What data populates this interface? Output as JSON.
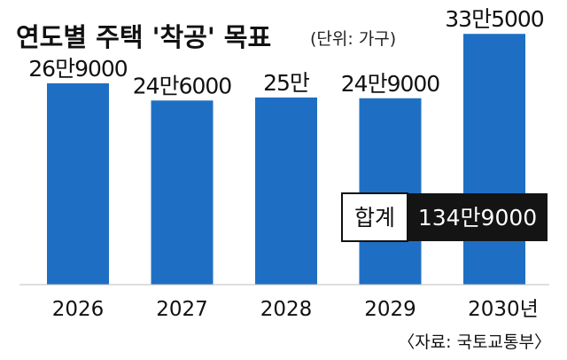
{
  "header": {
    "title": "연도별 주택 '착공' 목표",
    "unit": "(단위: 가구)"
  },
  "chart_data": {
    "type": "bar",
    "categories": [
      "2026",
      "2027",
      "2028",
      "2029",
      "2030년"
    ],
    "values": [
      269000,
      246000,
      250000,
      249000,
      335000
    ],
    "data_labels": [
      "26만9000",
      "24만6000",
      "25만",
      "24만9000",
      "33만5000"
    ],
    "title": "연도별 주택 '착공' 목표",
    "xlabel": "",
    "ylabel": "",
    "ylim": [
      0,
      340000
    ],
    "grid": false,
    "legend": "none",
    "bar_color": "#1e6fc4"
  },
  "total": {
    "label": "합계",
    "value": "134만9000"
  },
  "source": "〈자료: 국토교통부〉"
}
